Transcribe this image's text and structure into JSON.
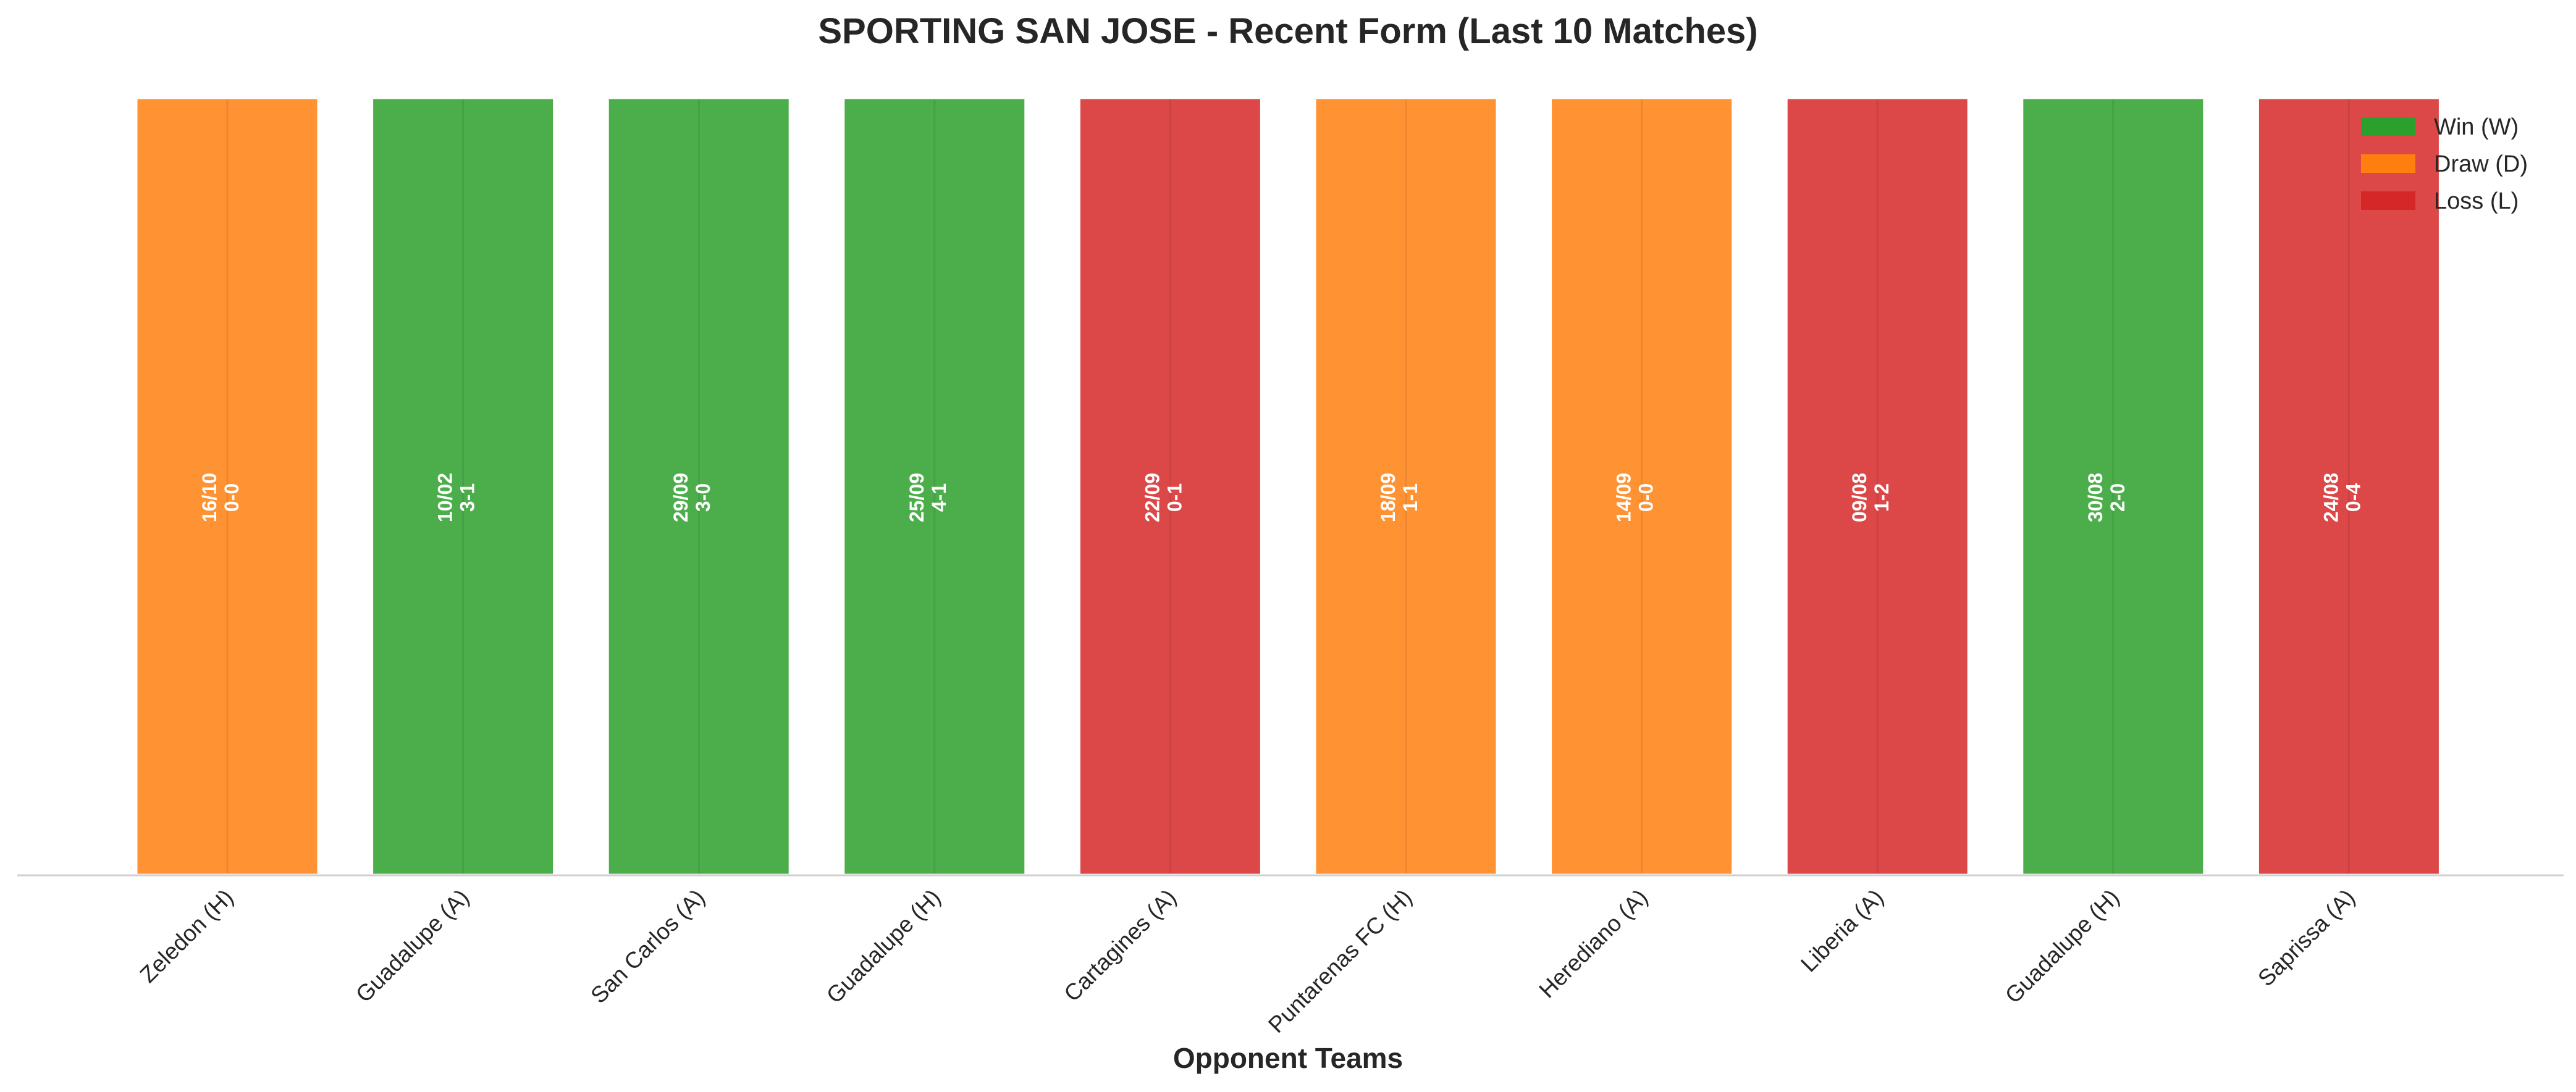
{
  "chart_data": {
    "type": "bar",
    "title": "SPORTING SAN JOSE - Recent Form (Last 10 Matches)",
    "xlabel": "Opponent Teams",
    "ylabel": "",
    "ylim": [
      0,
      1
    ],
    "grid": false,
    "legend_placement": "top-right",
    "legend": [
      {
        "label": "Win (W)",
        "result": "W",
        "color": "#2ca02c"
      },
      {
        "label": "Draw (D)",
        "result": "D",
        "color": "#ff7f0e"
      },
      {
        "label": "Loss (L)",
        "result": "L",
        "color": "#d62728"
      }
    ],
    "categories": [
      "Zeledon (H)",
      "Guadalupe (A)",
      "San Carlos (A)",
      "Guadalupe (H)",
      "Cartagines (A)",
      "Puntarenas FC (H)",
      "Herediano (A)",
      "Liberia (A)",
      "Guadalupe (H)",
      "Saprissa (A)"
    ],
    "values": [
      1,
      1,
      1,
      1,
      1,
      1,
      1,
      1,
      1,
      1
    ],
    "matches": [
      {
        "date": "16/10",
        "score": "0-0",
        "result": "D"
      },
      {
        "date": "10/02",
        "score": "3-1",
        "result": "W"
      },
      {
        "date": "29/09",
        "score": "3-0",
        "result": "W"
      },
      {
        "date": "25/09",
        "score": "4-1",
        "result": "W"
      },
      {
        "date": "22/09",
        "score": "0-1",
        "result": "L"
      },
      {
        "date": "18/09",
        "score": "1-1",
        "result": "D"
      },
      {
        "date": "14/09",
        "score": "0-0",
        "result": "D"
      },
      {
        "date": "09/08",
        "score": "1-2",
        "result": "L"
      },
      {
        "date": "30/08",
        "score": "2-0",
        "result": "W"
      },
      {
        "date": "24/08",
        "score": "0-4",
        "result": "L"
      }
    ]
  },
  "colors": {
    "win": "#2ca02c",
    "draw": "#ff7f0e",
    "loss": "#d62728",
    "axis": "#d0d0d0",
    "text": "#262626"
  }
}
